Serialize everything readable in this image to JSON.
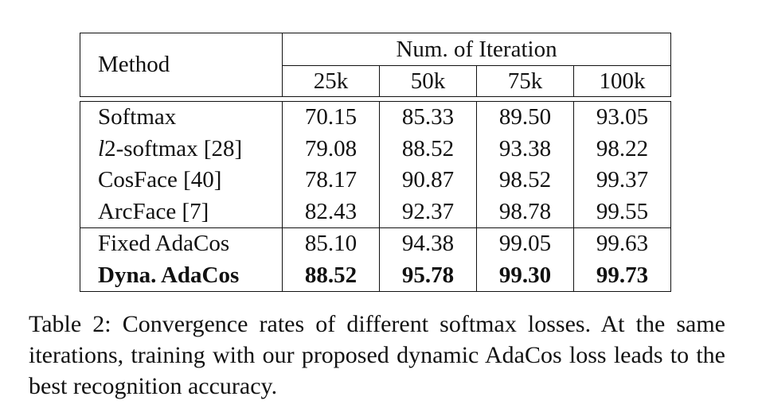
{
  "table": {
    "method_header": "Method",
    "group_header": "Num. of Iteration",
    "iteration_columns": [
      "25k",
      "50k",
      "75k",
      "100k"
    ],
    "rows": [
      {
        "method": "Softmax",
        "values": [
          "70.15",
          "85.33",
          "89.50",
          "93.05"
        ],
        "bold": false
      },
      {
        "method": "l2-softmax [28]",
        "values": [
          "79.08",
          "88.52",
          "93.38",
          "98.22"
        ],
        "bold": false
      },
      {
        "method": "CosFace [40]",
        "values": [
          "78.17",
          "90.87",
          "98.52",
          "99.37"
        ],
        "bold": false
      },
      {
        "method": "ArcFace [7]",
        "values": [
          "82.43",
          "92.37",
          "98.78",
          "99.55"
        ],
        "bold": false
      },
      {
        "method": "Fixed AdaCos",
        "values": [
          "85.10",
          "94.38",
          "99.05",
          "99.63"
        ],
        "bold": false
      },
      {
        "method": "Dyna. AdaCos",
        "values": [
          "88.52",
          "95.78",
          "99.30",
          "99.73"
        ],
        "bold": true
      }
    ]
  },
  "caption": {
    "text": "Table 2: Convergence rates of different softmax losses. At the same iterations, training with our proposed dynamic AdaCos loss leads to the best recognition accuracy."
  }
}
